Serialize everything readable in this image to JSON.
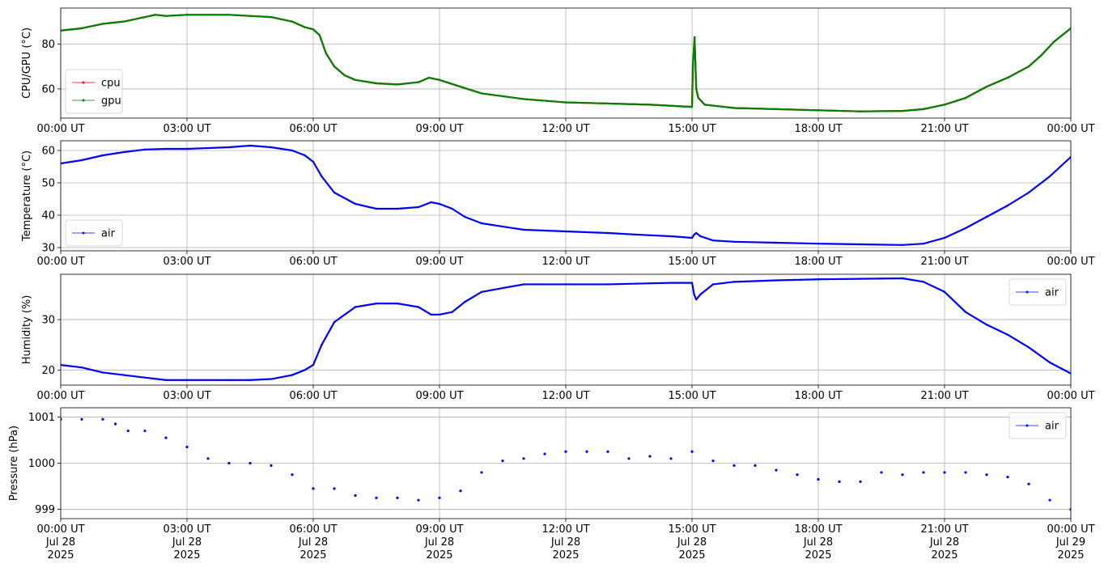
{
  "chart_data": [
    {
      "type": "line",
      "ylabel": "CPU/GPU (°C)",
      "xlim": [
        0,
        24
      ],
      "ylim": [
        47,
        96
      ],
      "yticks": [
        60,
        80
      ],
      "x_tick_labels": [
        "00:00 UT",
        "03:00 UT",
        "06:00 UT",
        "09:00 UT",
        "12:00 UT",
        "15:00 UT",
        "18:00 UT",
        "21:00 UT",
        "00:00 UT"
      ],
      "grid": true,
      "legend_position": "lower-left",
      "series": [
        {
          "name": "cpu",
          "color": "#ff0000",
          "x": [
            0,
            0.5,
            1,
            1.5,
            2,
            2.25,
            2.5,
            3,
            4,
            4.5,
            5,
            5.5,
            5.8,
            6,
            6.15,
            6.3,
            6.5,
            6.75,
            7,
            7.5,
            8,
            8.5,
            8.75,
            9,
            9.5,
            10,
            11,
            12,
            13,
            14,
            14.5,
            15,
            15.02,
            15.06,
            15.1,
            15.15,
            15.3,
            16,
            17,
            18,
            19,
            20,
            20.5,
            21,
            21.5,
            22,
            22.5,
            23,
            23.3,
            23.6,
            24
          ],
          "y": [
            86,
            87,
            89,
            90,
            92,
            93,
            92.5,
            93,
            93,
            92.5,
            92,
            90,
            87.5,
            86.5,
            84,
            76,
            70,
            66,
            64,
            62.5,
            62,
            63,
            65,
            64,
            61,
            58,
            55.5,
            54,
            53.5,
            53,
            52.5,
            52,
            70,
            83,
            60,
            56,
            53,
            51.5,
            51,
            50.5,
            50,
            50.2,
            51,
            53,
            56,
            61,
            65,
            70,
            75,
            81,
            87
          ]
        },
        {
          "name": "gpu",
          "color": "#008000",
          "x": [
            0,
            0.5,
            1,
            1.5,
            2,
            2.25,
            2.5,
            3,
            4,
            4.5,
            5,
            5.5,
            5.8,
            6,
            6.15,
            6.3,
            6.5,
            6.75,
            7,
            7.5,
            8,
            8.5,
            8.75,
            9,
            9.5,
            10,
            11,
            12,
            13,
            14,
            14.5,
            15,
            15.02,
            15.06,
            15.1,
            15.15,
            15.3,
            16,
            17,
            18,
            19,
            20,
            20.5,
            21,
            21.5,
            22,
            22.5,
            23,
            23.3,
            23.6,
            24
          ],
          "y": [
            86,
            87,
            89,
            90,
            92,
            93,
            92.5,
            93,
            93,
            92.5,
            92,
            90,
            87.5,
            86.5,
            84,
            76,
            70,
            66,
            64,
            62.5,
            62,
            63,
            65,
            64,
            61,
            58,
            55.5,
            54,
            53.5,
            53,
            52.5,
            52,
            70,
            83,
            60,
            56,
            53,
            51.5,
            51,
            50.5,
            50,
            50.2,
            51,
            53,
            56,
            61,
            65,
            70,
            75,
            81,
            87
          ]
        }
      ]
    },
    {
      "type": "line",
      "ylabel": "Temperature (°C)",
      "xlim": [
        0,
        24
      ],
      "ylim": [
        29,
        63
      ],
      "yticks": [
        30,
        40,
        50,
        60
      ],
      "x_tick_labels": [
        "00:00 UT",
        "03:00 UT",
        "06:00 UT",
        "09:00 UT",
        "12:00 UT",
        "15:00 UT",
        "18:00 UT",
        "21:00 UT",
        "00:00 UT"
      ],
      "grid": true,
      "legend_position": "lower-left",
      "series": [
        {
          "name": "air",
          "color": "#0000ff",
          "x": [
            0,
            0.5,
            1,
            1.5,
            2,
            2.5,
            3,
            4,
            4.5,
            5,
            5.5,
            5.8,
            6,
            6.2,
            6.5,
            7,
            7.5,
            8,
            8.5,
            8.8,
            9,
            9.3,
            9.6,
            10,
            11,
            12,
            13,
            14,
            14.5,
            15,
            15.05,
            15.1,
            15.2,
            15.5,
            16,
            17,
            18,
            19,
            20,
            20.5,
            21,
            21.5,
            22,
            22.5,
            23,
            23.5,
            24
          ],
          "y": [
            56,
            57,
            58.5,
            59.5,
            60.3,
            60.5,
            60.5,
            61,
            61.5,
            61,
            60,
            58.5,
            56.5,
            52,
            47,
            43.5,
            42,
            42,
            42.5,
            44,
            43.5,
            42,
            39.5,
            37.5,
            35.5,
            35,
            34.5,
            33.8,
            33.5,
            33,
            34,
            34.5,
            33.5,
            32.2,
            31.8,
            31.5,
            31.2,
            31,
            30.8,
            31.2,
            33,
            36,
            39.5,
            43,
            47,
            52,
            58
          ]
        }
      ]
    },
    {
      "type": "line",
      "ylabel": "Humidity (%)",
      "xlim": [
        0,
        24
      ],
      "ylim": [
        17,
        39
      ],
      "yticks": [
        20,
        30
      ],
      "x_tick_labels": [
        "00:00 UT",
        "03:00 UT",
        "06:00 UT",
        "09:00 UT",
        "12:00 UT",
        "15:00 UT",
        "18:00 UT",
        "21:00 UT",
        "00:00 UT"
      ],
      "grid": true,
      "legend_position": "upper-right",
      "series": [
        {
          "name": "air",
          "color": "#0000ff",
          "x": [
            0,
            0.5,
            1,
            1.5,
            2,
            2.5,
            3,
            4,
            4.5,
            5,
            5.5,
            5.8,
            6,
            6.2,
            6.5,
            7,
            7.5,
            8,
            8.5,
            8.8,
            9,
            9.3,
            9.6,
            10,
            11,
            12,
            13,
            14,
            14.5,
            15,
            15.05,
            15.1,
            15.2,
            15.5,
            16,
            17,
            18,
            19,
            20,
            20.5,
            21,
            21.5,
            22,
            22.5,
            23,
            23.5,
            24
          ],
          "y": [
            21,
            20.5,
            19.5,
            19,
            18.5,
            18,
            18,
            18,
            18,
            18.2,
            19,
            20,
            21,
            25,
            29.5,
            32.5,
            33.2,
            33.2,
            32.5,
            31,
            31,
            31.5,
            33.5,
            35.5,
            37,
            37,
            37,
            37.2,
            37.3,
            37.3,
            35,
            34,
            35,
            37,
            37.5,
            37.8,
            38,
            38.1,
            38.2,
            37.5,
            35.5,
            31.5,
            29,
            27,
            24.5,
            21.5,
            19.3
          ]
        }
      ]
    },
    {
      "type": "scatter",
      "ylabel": "Pressure (hPa)",
      "xlim": [
        0,
        24
      ],
      "ylim": [
        998.8,
        1001.2
      ],
      "yticks": [
        999,
        1000,
        1001
      ],
      "x_tick_labels": [
        "00:00 UT\nJul 28\n2025",
        "03:00 UT\nJul 28\n2025",
        "06:00 UT\nJul 28\n2025",
        "09:00 UT\nJul 28\n2025",
        "12:00 UT\nJul 28\n2025",
        "15:00 UT\nJul 28\n2025",
        "18:00 UT\nJul 28\n2025",
        "21:00 UT\nJul 28\n2025",
        "00:00 UT\nJul 29\n2025"
      ],
      "grid": true,
      "legend_position": "upper-right",
      "series": [
        {
          "name": "air",
          "color": "#0000ff",
          "x": [
            0,
            0.5,
            1,
            1.3,
            1.6,
            2,
            2.5,
            3,
            3.5,
            4,
            4.5,
            5,
            5.5,
            6,
            6.5,
            7,
            7.5,
            8,
            8.5,
            9,
            9.5,
            10,
            10.5,
            11,
            11.5,
            12,
            12.5,
            13,
            13.5,
            14,
            14.5,
            15,
            15.5,
            16,
            16.5,
            17,
            17.5,
            18,
            18.5,
            19,
            19.5,
            20,
            20.5,
            21,
            21.5,
            22,
            22.5,
            23,
            23.5,
            24
          ],
          "y": [
            1000.95,
            1000.95,
            1000.95,
            1000.85,
            1000.7,
            1000.7,
            1000.55,
            1000.35,
            1000.1,
            1000.0,
            1000.0,
            999.95,
            999.75,
            999.45,
            999.45,
            999.3,
            999.25,
            999.25,
            999.2,
            999.25,
            999.4,
            999.8,
            1000.05,
            1000.1,
            1000.2,
            1000.25,
            1000.25,
            1000.25,
            1000.1,
            1000.15,
            1000.1,
            1000.25,
            1000.05,
            999.95,
            999.95,
            999.85,
            999.75,
            999.65,
            999.6,
            999.6,
            999.8,
            999.75,
            999.8,
            999.8,
            999.8,
            999.75,
            999.7,
            999.55,
            999.2,
            999.0
          ]
        }
      ]
    }
  ]
}
